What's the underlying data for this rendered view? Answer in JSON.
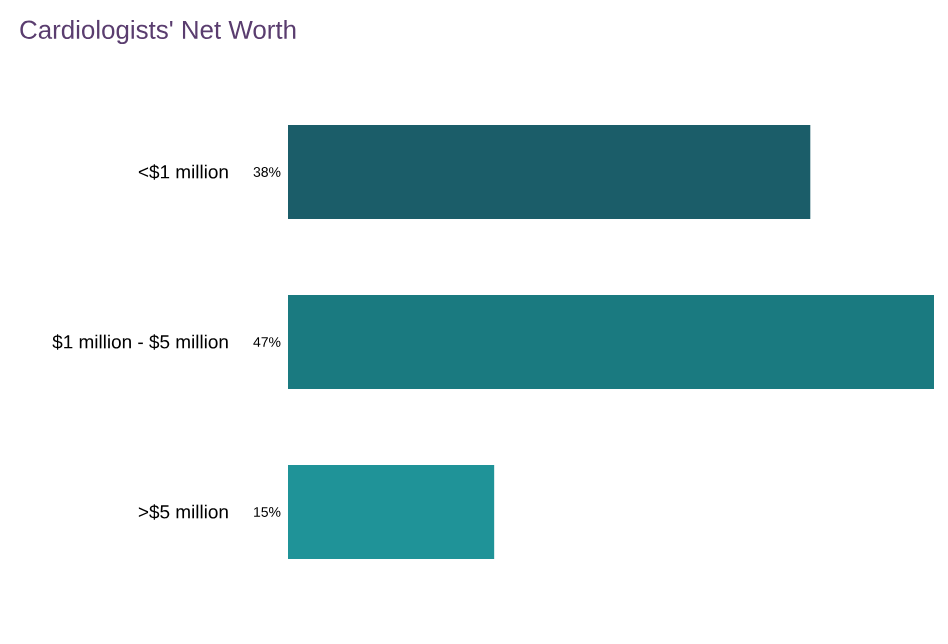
{
  "chart_data": {
    "type": "bar",
    "orientation": "horizontal",
    "title": "Cardiologists' Net Worth",
    "categories": [
      "<$1 million",
      "$1 million - $5 million",
      ">$5 million"
    ],
    "values": [
      38,
      47,
      15
    ],
    "value_labels": [
      "38%",
      "47%",
      "15%"
    ],
    "colors": [
      "#1b5d69",
      "#1a7a80",
      "#1f9398"
    ]
  }
}
